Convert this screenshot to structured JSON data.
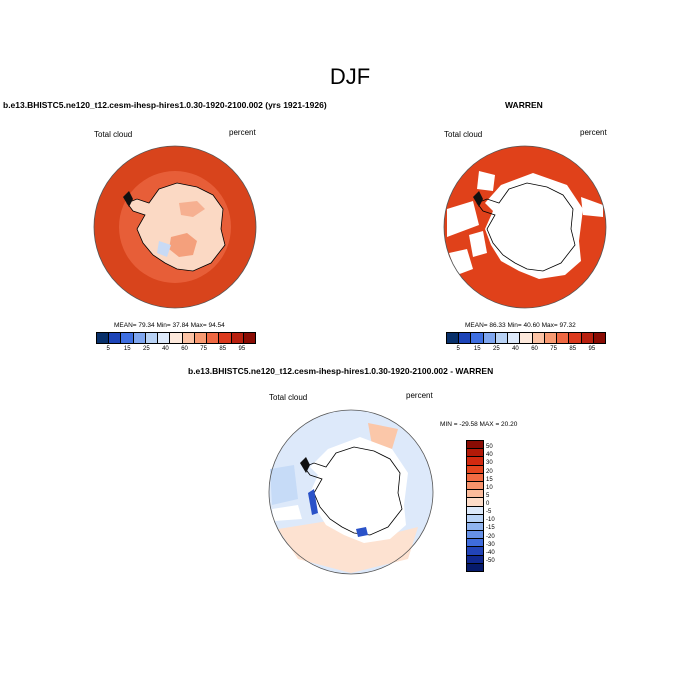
{
  "figure": {
    "title": "DJF"
  },
  "panels": [
    {
      "id": "model",
      "title": "b.e13.BHISTC5.ne120_t12.cesm-ihesp-hires1.0.30-1920-2100.002 (yrs 1921-1926)",
      "left_label": "Total cloud",
      "right_label": "percent",
      "stats": "MEAN=  79.34  Min=  37.84  Max=  94.54",
      "mean": 79.34,
      "min": 37.84,
      "max": 94.54,
      "fill": "#d8441c"
    },
    {
      "id": "obs",
      "title": "WARREN",
      "left_label": "Total cloud",
      "right_label": "percent",
      "stats": "MEAN=  86.33  Min=  40.60  Max=  97.32",
      "mean": 86.33,
      "min": 40.6,
      "max": 97.32,
      "fill": "#e0411a"
    },
    {
      "id": "diff",
      "title": "b.e13.BHISTC5.ne120_t12.cesm-ihesp-hires1.0.30-1920-2100.002 - WARREN",
      "left_label": "Total cloud",
      "right_label": "percent",
      "stats": "MIN = -29.58 MAX =  20.20",
      "min": -29.58,
      "max": 20.2
    }
  ],
  "colorbar_abs": {
    "labels": [
      "5",
      "15",
      "25",
      "40",
      "60",
      "75",
      "85",
      "95"
    ],
    "colors": [
      "#08306b",
      "#1c44b8",
      "#3f6fe0",
      "#7fa6ef",
      "#b8d2f5",
      "#dde9fa",
      "#fde9dc",
      "#fbc3a5",
      "#f79a72",
      "#ee6843",
      "#dc3a1e",
      "#b8200f",
      "#8a0c04"
    ]
  },
  "colorbar_diff": {
    "labels": [
      "50",
      "40",
      "30",
      "20",
      "15",
      "10",
      "5",
      "0",
      "-5",
      "-10",
      "-15",
      "-20",
      "-30",
      "-40",
      "-50"
    ],
    "colors": [
      "#8a0c04",
      "#b31a08",
      "#d22a10",
      "#e5461f",
      "#f26c43",
      "#f8946c",
      "#fbbb9b",
      "#fddcc8",
      "#dce9fa",
      "#b9d3f6",
      "#90b4ef",
      "#6690e6",
      "#3f6cdc",
      "#2244b8",
      "#10288f",
      "#061a6b"
    ]
  }
}
